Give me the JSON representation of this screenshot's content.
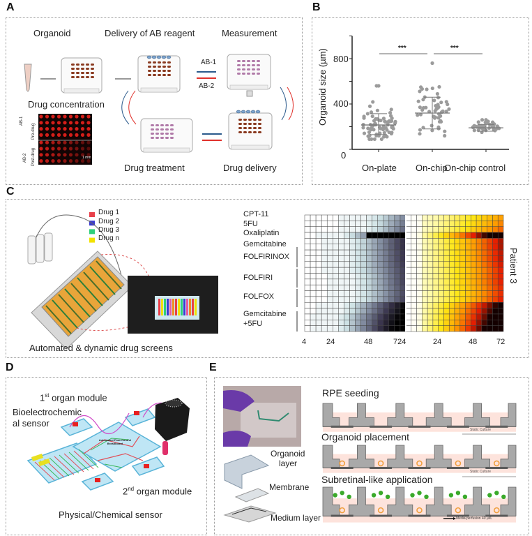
{
  "panel_a": {
    "label": "A",
    "organoid": "Organoid",
    "delivery": "Delivery of AB reagent",
    "measurement": "Measurement",
    "drug_concentration": "Drug concentration",
    "drug_treatment": "Drug treatment",
    "drug_delivery": "Drug delivery",
    "ab1": "AB-1",
    "ab2": "AB-2",
    "image_row_labels": [
      "AB-1",
      "Pre-drug",
      "AB-2",
      "Post-drug"
    ],
    "scale_bar": "1 mm",
    "colors": {
      "ab1_arrow": "#2b5a8c",
      "ab2_arrow": "#e0312b",
      "wells": "#e0201a"
    }
  },
  "chart_data": {
    "type": "scatter",
    "panel_label": "B",
    "categories": [
      "On-plate",
      "On-chip",
      "On-chip control"
    ],
    "ylabel": "Organoid size (µm)",
    "yticks": [
      0,
      400,
      800
    ],
    "ylim": [
      0,
      1000
    ],
    "series": [
      {
        "category": "On-plate",
        "mean": 215,
        "sd_low": 130,
        "sd_high": 315,
        "min": 90,
        "max": 560
      },
      {
        "category": "On-chip",
        "mean": 320,
        "sd_low": 180,
        "sd_high": 460,
        "min": 120,
        "max": 760
      },
      {
        "category": "On-chip control",
        "mean": 190,
        "sd_low": 160,
        "sd_high": 220,
        "min": 140,
        "max": 260
      }
    ],
    "significance": [
      {
        "from": "On-plate",
        "to": "On-chip",
        "label": "***"
      },
      {
        "from": "On-chip",
        "to": "On-chip control",
        "label": "***"
      }
    ],
    "point_color": "#9b9b9b"
  },
  "panel_c": {
    "label": "C",
    "legend": [
      {
        "label": "Drug 1",
        "color": "#e8404a"
      },
      {
        "label": "Drug 2",
        "color": "#3a3ad0"
      },
      {
        "label": "Drug 3",
        "color": "#2fd07a"
      },
      {
        "label": "Drug n",
        "color": "#f2e200"
      }
    ],
    "caption": "Automated & dynamic drug screens",
    "heatmap": {
      "row_labels": [
        "CPT-11",
        "5FU",
        "Oxaliplatin",
        "Gemcitabine",
        "FOLFIRINOX",
        "FOLFIRI",
        "FOLFOX",
        "Gemcitabine",
        "+5FU"
      ],
      "x_ticks": [
        "4",
        "24",
        "48",
        "724",
        "24",
        "48",
        "72"
      ],
      "side_label": "Patient 3"
    }
  },
  "panel_d": {
    "label": "D",
    "first_module": "1",
    "first_sup": "st",
    "first_rest": " organ module",
    "bio_sensor_line1": "Bioelectrochemic",
    "bio_sensor_line2": "al sensor",
    "second_module": "2",
    "second_sup": "nd",
    "second_rest": " organ module",
    "phys_sensor": "Physical/Chemical sensor",
    "breadboard": "Automated Flow Control Breadboard"
  },
  "panel_e": {
    "label": "E",
    "organoid_layer_1": "Organoid",
    "organoid_layer_2": "layer",
    "membrane": "Membrane",
    "medium_layer": "Medium layer",
    "rpe_seeding": "RPE seeding",
    "organoid_placement": "Organoid placement",
    "subretinal": "Subretinal-like application",
    "static_culture": "Static Culture",
    "media_perfusion": "Media perfusion 40 µl/L"
  }
}
